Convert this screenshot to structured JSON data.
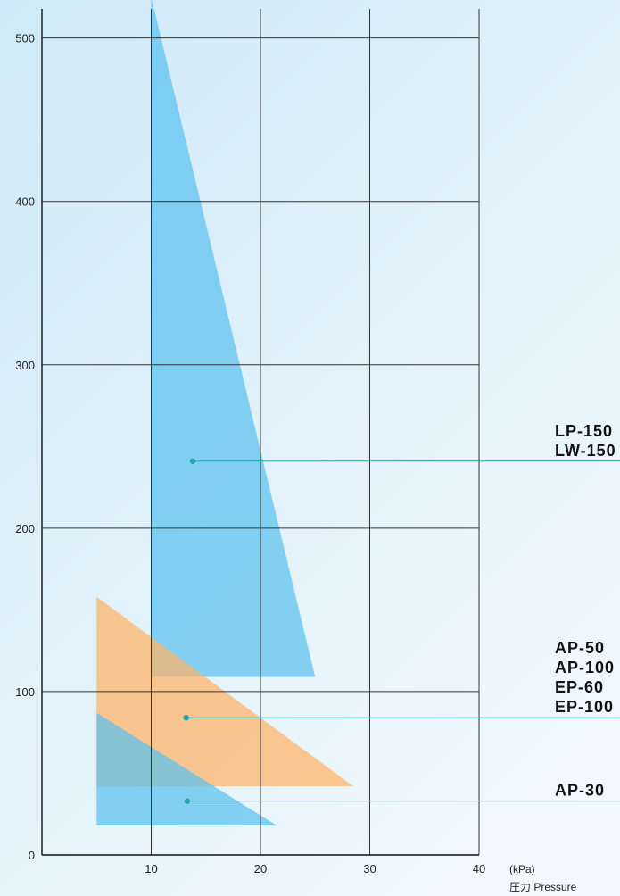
{
  "chart_data": {
    "type": "area",
    "xlabel_unit": "(kPa)",
    "xlabel": "圧力 Pressure",
    "xlim": [
      0,
      40
    ],
    "ylim": [
      0,
      520
    ],
    "x_ticks": [
      0,
      10,
      20,
      30,
      40
    ],
    "x_tick_labels": [
      "10",
      "20",
      "30",
      "40"
    ],
    "y_ticks": [
      0,
      100,
      200,
      300,
      400,
      500
    ],
    "y_tick_labels": [
      "0",
      "100",
      "200",
      "300",
      "400",
      "500"
    ],
    "grid": true,
    "colors": {
      "blue": "#5bc0ee",
      "orange": "#ffb366",
      "leader": "#1fa6a6",
      "grid": "#333333"
    },
    "regions": [
      {
        "label_lines": [
          "LP-150",
          "LW-150"
        ],
        "color": "blue",
        "polygon": [
          [
            10,
            525
          ],
          [
            10,
            109
          ],
          [
            25,
            109
          ]
        ],
        "marker": [
          13.8,
          241
        ],
        "label_y": 241
      },
      {
        "label_lines": [
          "AP-50",
          "AP-100",
          "EP-60",
          "EP-100"
        ],
        "color": "orange",
        "polygon": [
          [
            5,
            158
          ],
          [
            5,
            42
          ],
          [
            28.5,
            42
          ]
        ],
        "marker": [
          13.2,
          84
        ],
        "label_y": 84
      },
      {
        "label_lines": [
          "AP-30"
        ],
        "color": "blue",
        "polygon": [
          [
            5,
            87
          ],
          [
            5,
            18
          ],
          [
            21.5,
            18
          ]
        ],
        "marker": [
          13.3,
          33
        ],
        "label_y": 33
      }
    ]
  }
}
